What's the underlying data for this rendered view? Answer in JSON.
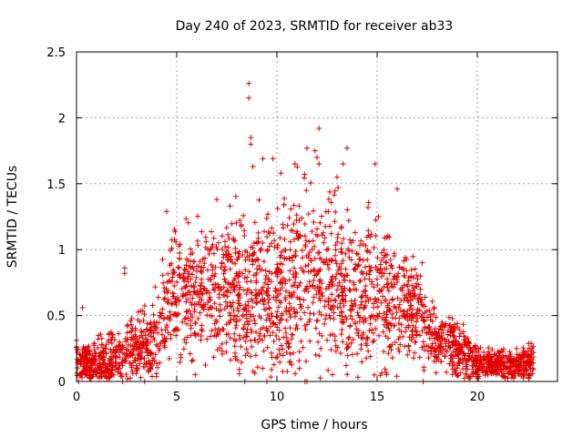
{
  "chart_data": {
    "type": "scatter",
    "title": "Day 240 of 2023, SRMTID for receiver ab33",
    "xlabel": "GPS time / hours",
    "ylabel": "SRMTID / TECUs",
    "xlim": [
      0,
      24
    ],
    "ylim": [
      0,
      2.5
    ],
    "xticks": [
      0,
      5,
      10,
      15,
      20
    ],
    "yticks": [
      0,
      0.5,
      1,
      1.5,
      2,
      2.5
    ],
    "xtick_labels": [
      "0",
      "5",
      "10",
      "15",
      "20"
    ],
    "ytick_labels": [
      "0",
      "0.5",
      "1",
      "1.5",
      "2",
      "2.5"
    ],
    "grid": true,
    "marker": "+",
    "series_color": "#e00000",
    "series": [
      {
        "name": "SRMTID",
        "profile": {
          "hours": [
            0.0,
            1.0,
            2.0,
            3.0,
            4.0,
            4.5,
            5.0,
            6.0,
            7.0,
            8.0,
            9.0,
            10.0,
            11.0,
            12.0,
            13.0,
            14.0,
            15.0,
            16.0,
            17.0,
            18.0,
            19.0,
            20.0,
            21.0,
            22.0,
            22.8
          ],
          "typical": [
            0.15,
            0.12,
            0.2,
            0.25,
            0.3,
            0.6,
            0.7,
            0.65,
            0.75,
            0.65,
            0.75,
            0.7,
            0.75,
            0.8,
            0.75,
            0.65,
            0.7,
            0.6,
            0.5,
            0.3,
            0.25,
            0.15,
            0.12,
            0.12,
            0.15
          ],
          "spread": [
            0.15,
            0.15,
            0.2,
            0.25,
            0.3,
            0.4,
            0.45,
            0.45,
            0.5,
            0.55,
            0.55,
            0.5,
            0.55,
            0.6,
            0.55,
            0.5,
            0.5,
            0.45,
            0.35,
            0.2,
            0.2,
            0.12,
            0.1,
            0.1,
            0.12
          ]
        },
        "outliers": [
          {
            "x": 8.6,
            "y": 2.26
          },
          {
            "x": 8.6,
            "y": 2.15
          },
          {
            "x": 8.7,
            "y": 1.85
          },
          {
            "x": 8.7,
            "y": 1.8
          },
          {
            "x": 8.8,
            "y": 1.63
          },
          {
            "x": 9.3,
            "y": 1.69
          },
          {
            "x": 9.8,
            "y": 1.69
          },
          {
            "x": 10.9,
            "y": 1.65
          },
          {
            "x": 11.5,
            "y": 1.77
          },
          {
            "x": 11.9,
            "y": 1.75
          },
          {
            "x": 12.1,
            "y": 1.92
          },
          {
            "x": 12.0,
            "y": 1.7
          },
          {
            "x": 12.1,
            "y": 1.65
          },
          {
            "x": 13.3,
            "y": 1.65
          },
          {
            "x": 13.5,
            "y": 1.77
          },
          {
            "x": 14.9,
            "y": 1.65
          },
          {
            "x": 16.0,
            "y": 1.46
          },
          {
            "x": 7.0,
            "y": 1.38
          },
          {
            "x": 4.5,
            "y": 1.29
          },
          {
            "x": 2.4,
            "y": 0.86
          },
          {
            "x": 2.4,
            "y": 0.82
          },
          {
            "x": 0.3,
            "y": 0.56
          },
          {
            "x": 10.2,
            "y": 1.58
          },
          {
            "x": 13.0,
            "y": 1.55
          }
        ]
      }
    ]
  }
}
